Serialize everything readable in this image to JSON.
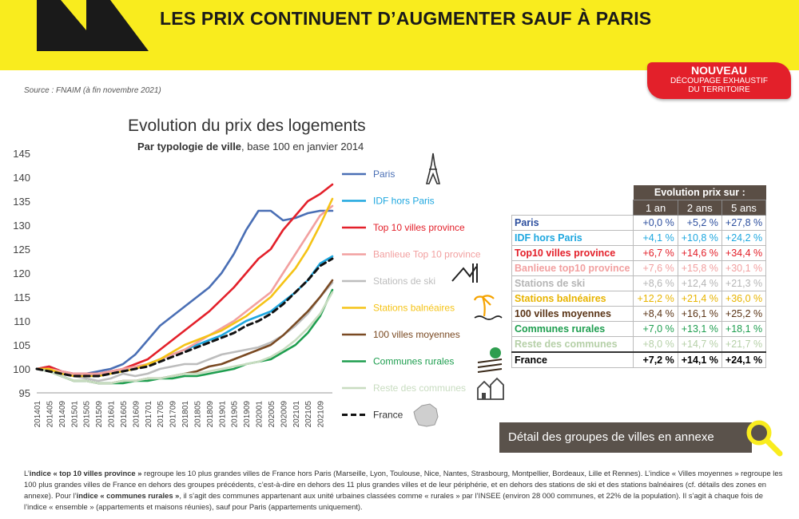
{
  "header": {
    "title": "LES PRIX CONTINUENT D’AUGMENTER SAUF À PARIS"
  },
  "badge": {
    "line1": "NOUVEAU",
    "line2": "DÉCOUPAGE EXHAUSTIF",
    "line3": "DU TERRITOIRE"
  },
  "source": "Source : FNAIM (à fin novembre 2021)",
  "chart_data": {
    "type": "line",
    "title": "Evolution du prix des logements",
    "subtitle_bold": "Par typologie de ville",
    "subtitle_rest": ", base 100 en janvier 2014",
    "ylim": [
      95,
      145
    ],
    "yticks": [
      95,
      100,
      105,
      110,
      115,
      120,
      125,
      130,
      135,
      140,
      145
    ],
    "grid": false,
    "legend_position": "right",
    "x": [
      "201401",
      "201405",
      "201409",
      "201501",
      "201505",
      "201509",
      "201601",
      "201605",
      "201609",
      "201701",
      "201705",
      "201709",
      "201801",
      "201805",
      "201809",
      "201901",
      "201905",
      "201909",
      "202001",
      "202005",
      "202009",
      "202101",
      "202105",
      "202109",
      "202111"
    ],
    "x_tick_labels": [
      "201401",
      "201405",
      "201409",
      "201501",
      "201505",
      "201509",
      "201601",
      "201605",
      "201609",
      "201701",
      "201705",
      "201709",
      "201801",
      "201805",
      "201809",
      "201901",
      "201905",
      "201909",
      "202001",
      "202005",
      "202009",
      "202101",
      "202105",
      "202109"
    ],
    "series": [
      {
        "name": "Paris",
        "color": "#4a6fb5",
        "dashed": false,
        "icon": "eiffel-tower-icon",
        "values": [
          100,
          100.5,
          99.5,
          99,
          99,
          99.5,
          100,
          101,
          103,
          106,
          109,
          111,
          113,
          115,
          117,
          120,
          124,
          129,
          133,
          133,
          131,
          131.5,
          132.5,
          133,
          133
        ]
      },
      {
        "name": "IDF hors Paris",
        "color": "#1ea7df",
        "dashed": false,
        "icon": "",
        "values": [
          100,
          100,
          99,
          98.5,
          98.5,
          98.5,
          99,
          99.5,
          100,
          101,
          102,
          103,
          104,
          105,
          106,
          107,
          108.5,
          110,
          111,
          112,
          114,
          116,
          118.5,
          122,
          123.5
        ]
      },
      {
        "name": "Top 10 villes province",
        "color": "#e3202a",
        "dashed": false,
        "icon": "",
        "values": [
          100,
          100.5,
          99.5,
          99,
          99,
          99,
          99.5,
          100,
          101,
          102,
          104,
          106,
          108,
          110,
          112,
          114.5,
          117,
          120,
          123,
          125,
          129,
          132,
          135,
          136.5,
          138.5
        ]
      },
      {
        "name": "Banlieue Top 10 province",
        "color": "#f2a0a0",
        "dashed": false,
        "icon": "",
        "values": [
          100,
          100,
          99.5,
          99,
          99,
          99,
          99.5,
          100,
          100.5,
          101,
          102,
          103,
          104,
          105.5,
          107,
          108.5,
          110,
          112,
          114,
          116,
          120,
          124,
          128,
          132,
          134
        ]
      },
      {
        "name": "Stations de ski",
        "color": "#bdbdbd",
        "dashed": false,
        "icon": "ski-icon",
        "values": [
          100,
          99.5,
          99,
          98.5,
          98,
          97.5,
          98,
          99,
          98.5,
          99,
          100,
          100.5,
          101,
          101,
          102,
          103,
          103.5,
          104,
          104.5,
          105.5,
          107,
          109,
          111.5,
          115,
          118
        ]
      },
      {
        "name": "Stations balnéaires",
        "color": "#f5c316",
        "dashed": false,
        "icon": "beach-palm-icon",
        "values": [
          100,
          100,
          99,
          98.5,
          98.5,
          98.5,
          99,
          99.5,
          100,
          101,
          102,
          103.5,
          105,
          106,
          107,
          108,
          109.5,
          111,
          113,
          115,
          118,
          121,
          125,
          130,
          135.5
        ]
      },
      {
        "name": "100 villes moyennes",
        "color": "#7a4a23",
        "dashed": false,
        "icon": "",
        "values": [
          100,
          99.5,
          98.5,
          97.5,
          97.5,
          97,
          97,
          97.5,
          97.5,
          98,
          98,
          98.5,
          99,
          99.5,
          100.5,
          101,
          102,
          103,
          104,
          105,
          107,
          109.5,
          112,
          115,
          118.5
        ]
      },
      {
        "name": "Communes rurales",
        "color": "#1e9e4f",
        "dashed": false,
        "icon": "farm-icon",
        "values": [
          100,
          99.5,
          98.5,
          97.5,
          97.5,
          97,
          97,
          97,
          97.5,
          97.5,
          98,
          98,
          98.5,
          98.5,
          99,
          99.5,
          100,
          101,
          101.5,
          102,
          103.5,
          105,
          107.5,
          111,
          116.5
        ]
      },
      {
        "name": "Reste des communes",
        "color": "#c8dcc0",
        "dashed": false,
        "icon": "village-icon",
        "values": [
          100,
          99.5,
          98.5,
          97.5,
          97.5,
          97,
          97,
          97.5,
          97.5,
          98,
          98,
          98.5,
          99,
          99,
          99.5,
          100,
          100.5,
          101,
          101.5,
          102.5,
          104,
          106,
          108.5,
          111.5,
          116
        ]
      },
      {
        "name": "France",
        "color": "#111111",
        "dashed": true,
        "icon": "france-map-icon",
        "values": [
          100,
          99.5,
          99,
          98.5,
          98.5,
          98.5,
          99,
          99.5,
          100,
          100.5,
          101.5,
          102.5,
          103.5,
          104.5,
          105.5,
          106.5,
          107.5,
          109,
          110,
          111.5,
          113.5,
          116,
          118.5,
          121.5,
          123
        ]
      }
    ]
  },
  "table": {
    "header": "Evolution prix sur :",
    "columns": [
      "1 an",
      "2 ans",
      "5 ans"
    ],
    "rows": [
      {
        "name": "Paris",
        "color": "#2d4f9e",
        "values": [
          "+0,0 %",
          "+5,2 %",
          "+27,8 %"
        ]
      },
      {
        "name": "IDF hors Paris",
        "color": "#1ea7df",
        "values": [
          "+4,1 %",
          "+10,8 %",
          "+24,2 %"
        ]
      },
      {
        "name": "Top10 villes province",
        "color": "#e3202a",
        "values": [
          "+6,7 %",
          "+14,6 %",
          "+34,4 %"
        ]
      },
      {
        "name": "Banlieue top10 province",
        "color": "#f2a0a0",
        "values": [
          "+7,6 %",
          "+15,8 %",
          "+30,1 %"
        ]
      },
      {
        "name": "Stations de ski",
        "color": "#b5b5b5",
        "values": [
          "+8,6 %",
          "+12,4 %",
          "+21,3 %"
        ]
      },
      {
        "name": "Stations balnéaires",
        "color": "#e8b400",
        "values": [
          "+12,2 %",
          "+21,4 %",
          "+36,0 %"
        ]
      },
      {
        "name": "100 villes moyennes",
        "color": "#5a3416",
        "values": [
          "+8,4 %",
          "+16,1 %",
          "+25,2 %"
        ]
      },
      {
        "name": "Communes rurales",
        "color": "#1e9e4f",
        "values": [
          "+7,0 %",
          "+13,1 %",
          "+18,1 %"
        ]
      },
      {
        "name": "Reste des communes",
        "color": "#b6d0a8",
        "values": [
          "+8,0 %",
          "+14,7 %",
          "+21,7 %"
        ]
      },
      {
        "name": "France",
        "color": "#000000",
        "values": [
          "+7,2 %",
          "+14,1 %",
          "+24,1 %"
        ]
      }
    ]
  },
  "annex": {
    "label": "Détail des groupes de villes en annexe"
  },
  "footnote": {
    "p1": "L’",
    "b1": "indice « top 10 villes province »",
    "p2": " regroupe les 10 plus grandes villes de France hors Paris (Marseille, Lyon, Toulouse, Nice, Nantes, Strasbourg, Montpellier, Bordeaux, Lille et Rennes). L’indice « Villes moyennes » regroupe les 100 plus grandes villes de France en dehors des groupes précédents, c’est-à-dire en dehors des 11 plus grandes villes et de leur périphérie, et en dehors des stations de ski et des stations balnéaires (cf. détails des zones en annexe). Pour l’",
    "b2": "indice « communes rurales »",
    "p3": ", il s’agit des communes appartenant aux unité urbaines classées comme « rurales » par l’INSEE (environ 28 000 communes, et 22% de la population). Il s’agit à chaque fois de l’indice « ensemble » (appartements et maisons réunies), sauf pour Paris (appartements uniquement)."
  }
}
